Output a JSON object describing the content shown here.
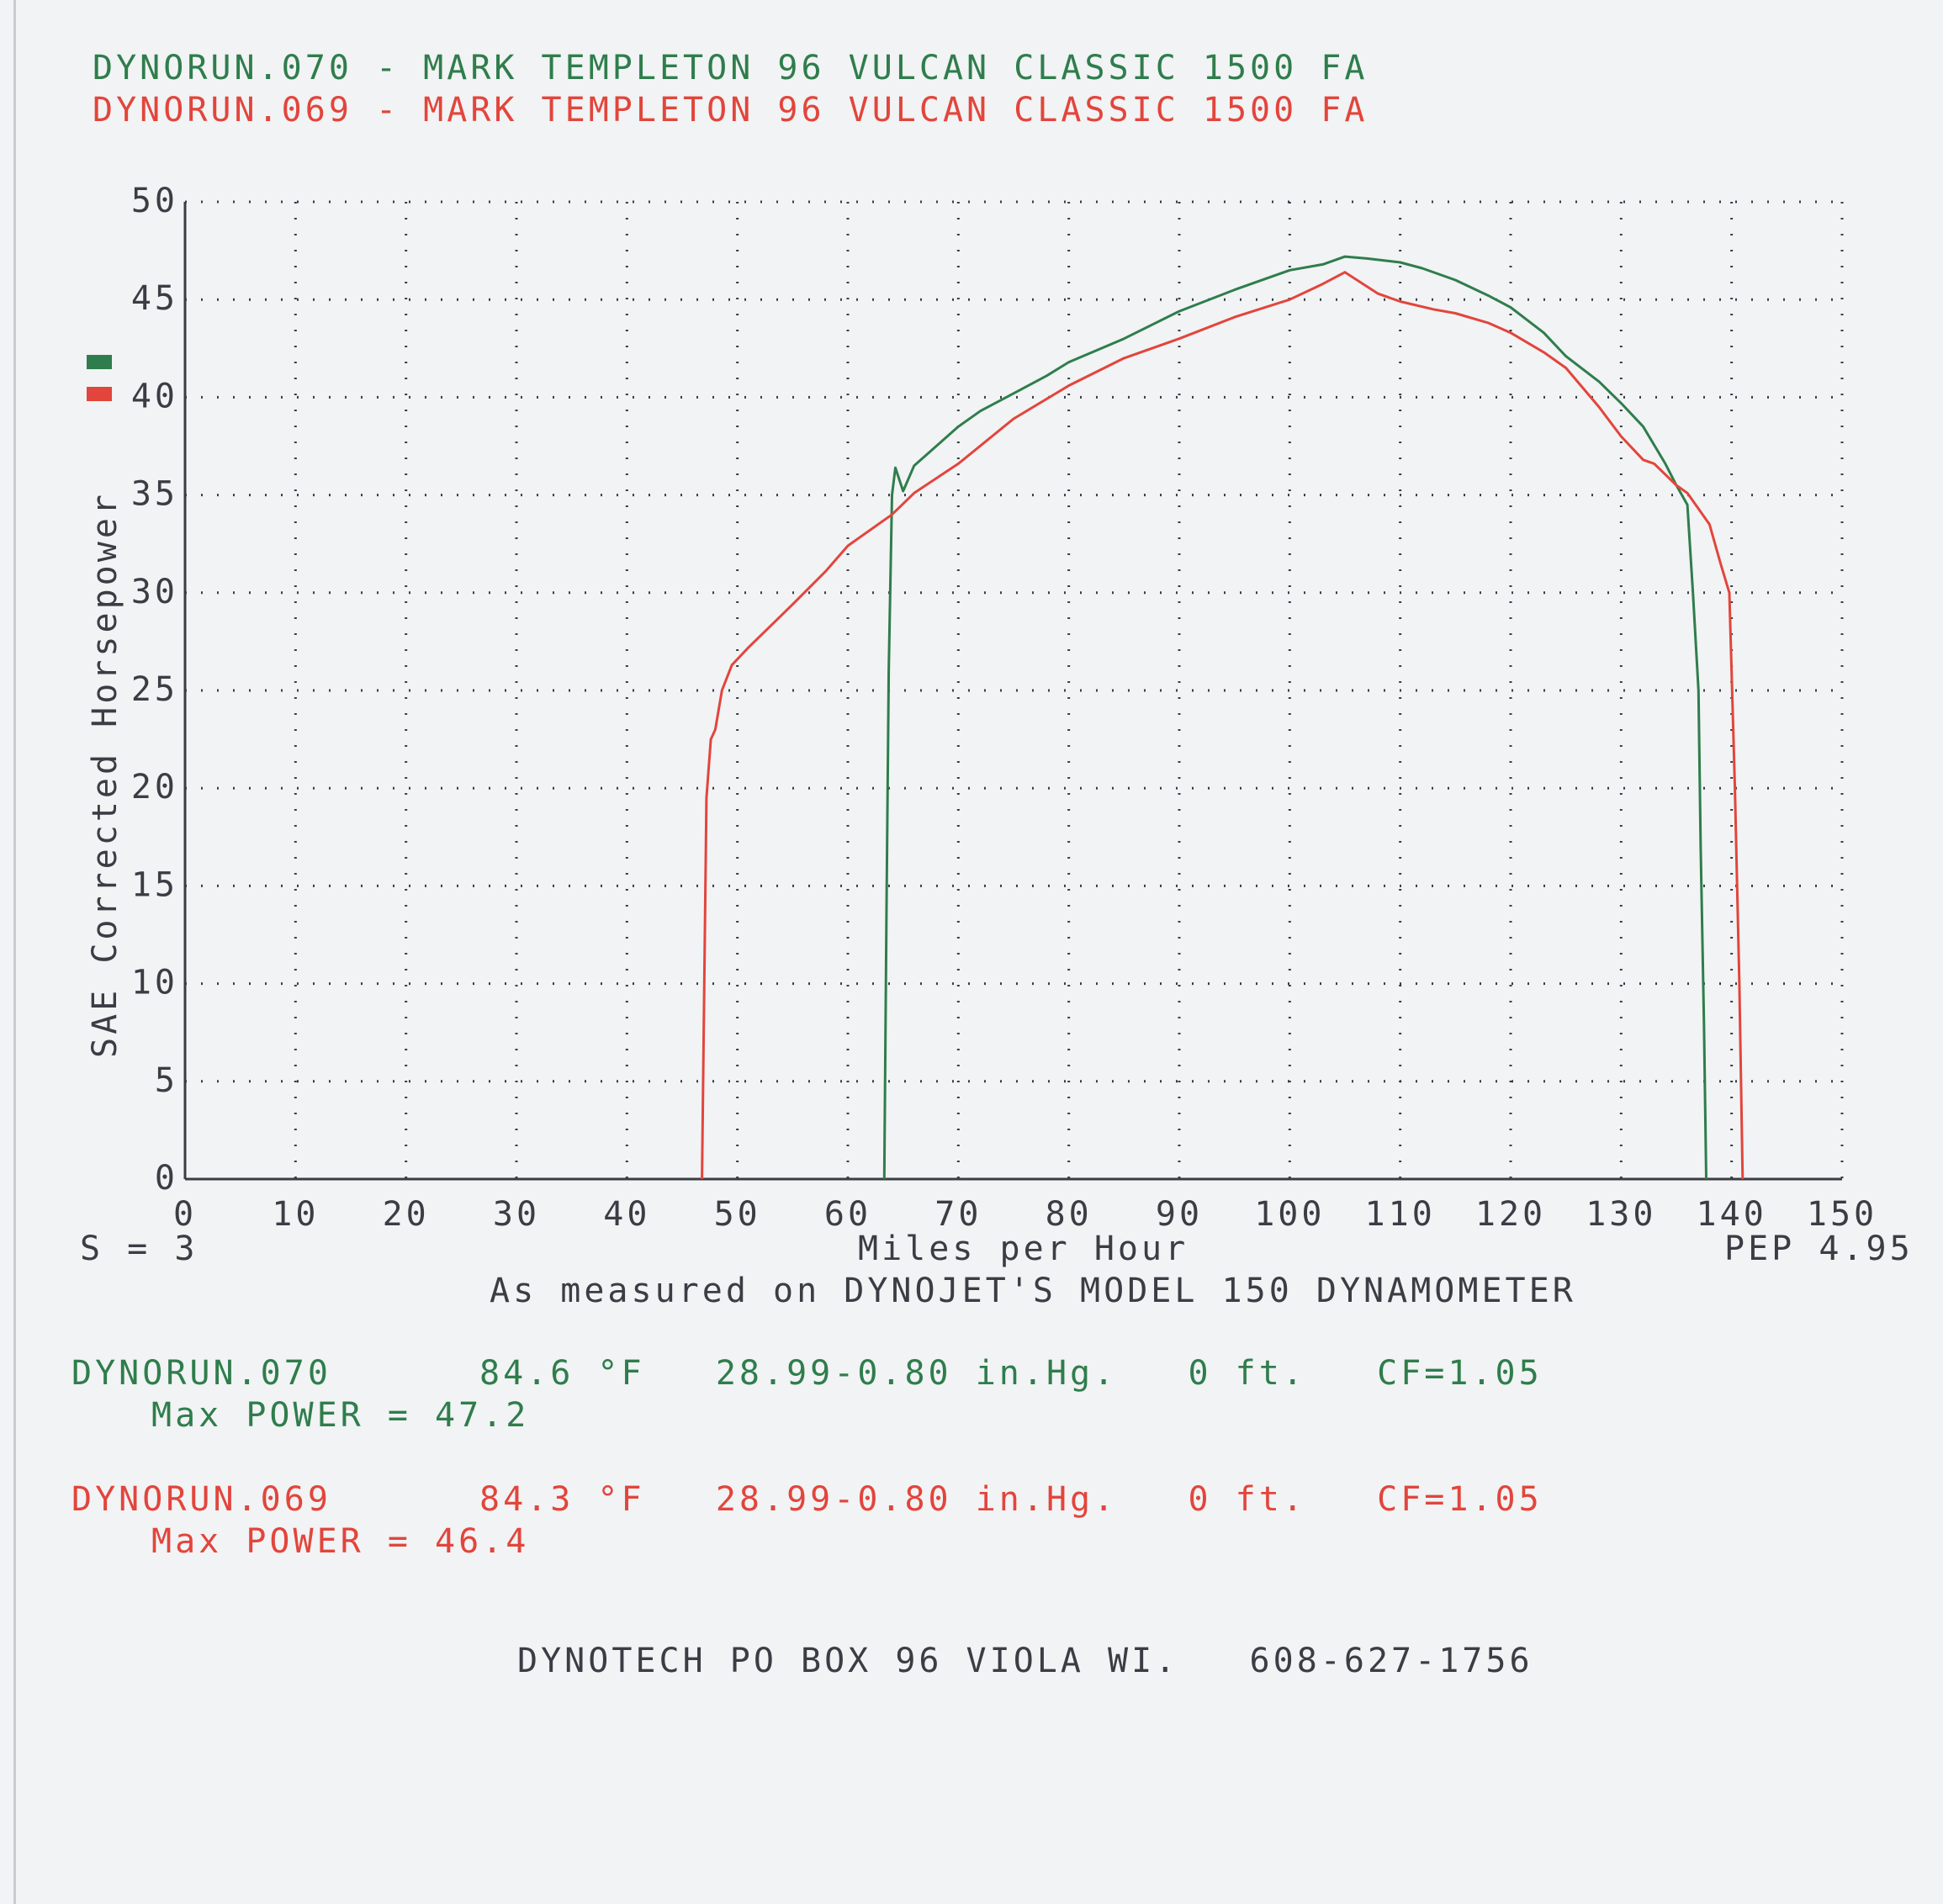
{
  "header": {
    "title_run070": "DYNORUN.070 - MARK TEMPLETON 96 VULCAN CLASSIC 1500 FA",
    "title_run069": "DYNORUN.069 - MARK TEMPLETON 96 VULCAN CLASSIC 1500 FA"
  },
  "colors": {
    "run070": "#2f7d4c",
    "run069": "#e2453c",
    "text": "#3a3d44",
    "grid": "#3a3d44"
  },
  "chart_data": {
    "type": "line",
    "xlabel": "Miles per Hour",
    "ylabel": "SAE Corrected Horsepower",
    "xlim": [
      0,
      150
    ],
    "ylim": [
      0,
      50
    ],
    "x_ticks": [
      "0",
      "10",
      "20",
      "30",
      "40",
      "50",
      "60",
      "70",
      "80",
      "90",
      "100",
      "110",
      "120",
      "130",
      "140",
      "150"
    ],
    "y_ticks": [
      "0",
      "5",
      "10",
      "15",
      "20",
      "25",
      "30",
      "35",
      "40",
      "45",
      "50"
    ],
    "grid": true,
    "legend": "left",
    "series": [
      {
        "name": "DYNORUN.070",
        "color": "#2f7d4c",
        "x": [
          63.3,
          63.5,
          63.7,
          64.0,
          64.3,
          65,
          66,
          68,
          70,
          72,
          75,
          78,
          80,
          85,
          90,
          95,
          100,
          103,
          105,
          107,
          110,
          112,
          115,
          118,
          120,
          123,
          125,
          128,
          130,
          132,
          134,
          135,
          136,
          136.5,
          137,
          137.2,
          137.5,
          137.7
        ],
        "y": [
          0,
          14,
          26,
          35,
          36.4,
          35.2,
          36.5,
          37.5,
          38.5,
          39.3,
          40.2,
          41.1,
          41.8,
          43.0,
          44.4,
          45.5,
          46.5,
          46.8,
          47.2,
          47.1,
          46.9,
          46.6,
          46.0,
          45.2,
          44.6,
          43.3,
          42.1,
          40.8,
          39.7,
          38.5,
          36.6,
          35.5,
          34.5,
          30,
          25,
          17,
          8,
          0
        ]
      },
      {
        "name": "DYNORUN.069",
        "color": "#e2453c",
        "x": [
          46.8,
          47.0,
          47.2,
          47.6,
          48,
          48.6,
          49.5,
          51,
          53,
          55,
          58,
          60,
          62,
          64,
          66,
          70,
          75,
          80,
          85,
          90,
          95,
          100,
          103,
          105,
          108,
          110,
          113,
          115,
          118,
          120,
          123,
          125,
          128,
          130,
          132,
          133,
          135,
          136,
          138,
          139,
          139.8,
          140.3,
          140.7,
          141.0
        ],
        "y": [
          0,
          10,
          19.5,
          22.5,
          23,
          25,
          26.3,
          27.2,
          28.3,
          29.4,
          31.1,
          32.4,
          33.2,
          34.0,
          35.1,
          36.6,
          38.9,
          40.6,
          42.0,
          43.0,
          44.1,
          45.0,
          45.8,
          46.4,
          45.3,
          44.9,
          44.5,
          44.3,
          43.8,
          43.3,
          42.3,
          41.5,
          39.5,
          38.0,
          36.8,
          36.6,
          35.5,
          35.1,
          33.5,
          31.5,
          30,
          20,
          10,
          0
        ]
      }
    ]
  },
  "notes": {
    "smoothing": "S = 3",
    "pep": "PEP 4.95",
    "subtitle": "As measured on DYNOJET'S MODEL 150 DYNAMOMETER"
  },
  "runs": [
    {
      "name": "DYNORUN.070",
      "params": "84.6 °F   28.99-0.80 in.Hg.   0 ft.   CF=1.05",
      "max_power": "Max POWER = 47.2"
    },
    {
      "name": "DYNORUN.069",
      "params": "84.3 °F   28.99-0.80 in.Hg.   0 ft.   CF=1.05",
      "max_power": "Max POWER = 46.4"
    }
  ],
  "footer": "DYNOTECH PO BOX 96 VIOLA WI.   608-627-1756"
}
